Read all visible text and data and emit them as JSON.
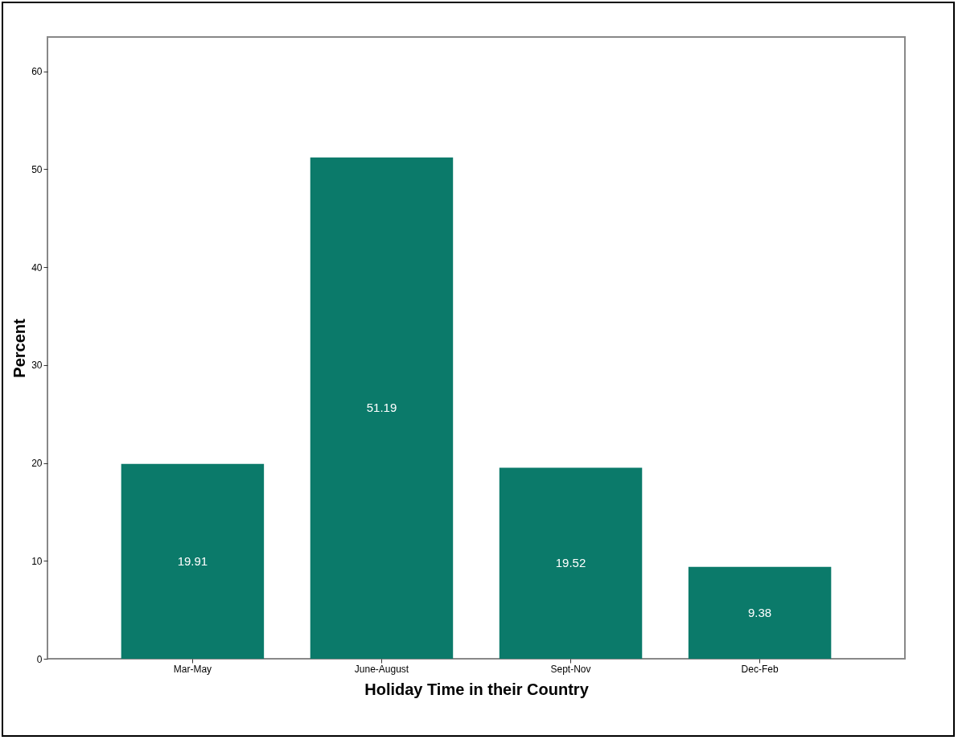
{
  "chart_data": {
    "type": "bar",
    "xlabel": "Holiday Time  in their Country",
    "ylabel": "Percent",
    "categories": [
      "Mar-May",
      "June-August",
      "Sept-Nov",
      "Dec-Feb"
    ],
    "values": [
      19.91,
      51.19,
      19.52,
      9.38
    ],
    "color": "#0b7a6a",
    "ylim": [
      0,
      63.5
    ],
    "yticks": [
      0,
      10,
      20,
      30,
      40,
      50,
      60
    ],
    "grid": false,
    "data_labels": true
  }
}
